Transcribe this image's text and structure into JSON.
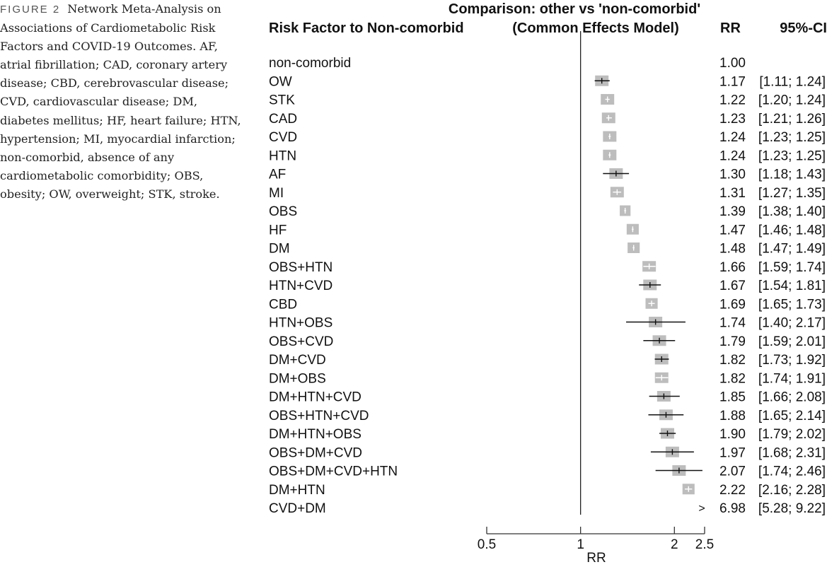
{
  "caption": {
    "label": "FIGURE 2",
    "text": "Network Meta-Analysis on Associations of Cardiometabolic Risk Factors and COVID-19 Outcomes. AF, atrial fibrillation; CAD, coronary artery disease; CBD, cerebrovascular disease; CVD, cardiovascular disease; DM, diabetes mellitus; HF, heart failure; HTN, hypertension; MI, myocardial infarction; non-comorbid, absence of any cardiometabolic comorbidity; OBS, obesity; OW, overweight; STK, stroke."
  },
  "chart_data": {
    "type": "forest",
    "title": "Comparison: other vs 'non-comorbid'",
    "subtitle": "(Common Effects Model)",
    "headers": {
      "label_col": "Risk Factor to Non-comorbid",
      "rr_col": "RR",
      "ci_col": "95%-CI"
    },
    "xlabel": "RR",
    "x_scale": "log",
    "xlim": [
      0.5,
      2.5
    ],
    "x_ticks": [
      0.5,
      1,
      2,
      2.5
    ],
    "x_tick_labels": [
      "0.5",
      "1",
      "2",
      "2.5"
    ],
    "reference_line": 1,
    "out_of_range_marker": ">",
    "rows": [
      {
        "label": "non-comorbid",
        "rr": 1.0,
        "lo": null,
        "hi": null,
        "rr_text": "1.00",
        "ci_text": "",
        "weight": 0
      },
      {
        "label": "OW",
        "rr": 1.17,
        "lo": 1.11,
        "hi": 1.24,
        "rr_text": "1.17",
        "ci_text": "[1.11; 1.24]",
        "weight": 1
      },
      {
        "label": "STK",
        "rr": 1.22,
        "lo": 1.2,
        "hi": 1.24,
        "rr_text": "1.22",
        "ci_text": "[1.20; 1.24]",
        "weight": 1
      },
      {
        "label": "CAD",
        "rr": 1.23,
        "lo": 1.21,
        "hi": 1.26,
        "rr_text": "1.23",
        "ci_text": "[1.21; 1.26]",
        "weight": 1
      },
      {
        "label": "CVD",
        "rr": 1.24,
        "lo": 1.23,
        "hi": 1.25,
        "rr_text": "1.24",
        "ci_text": "[1.23; 1.25]",
        "weight": 1
      },
      {
        "label": "HTN",
        "rr": 1.24,
        "lo": 1.23,
        "hi": 1.25,
        "rr_text": "1.24",
        "ci_text": "[1.23; 1.25]",
        "weight": 1
      },
      {
        "label": "AF",
        "rr": 1.3,
        "lo": 1.18,
        "hi": 1.43,
        "rr_text": "1.30",
        "ci_text": "[1.18; 1.43]",
        "weight": 1
      },
      {
        "label": "MI",
        "rr": 1.31,
        "lo": 1.27,
        "hi": 1.35,
        "rr_text": "1.31",
        "ci_text": "[1.27; 1.35]",
        "weight": 1
      },
      {
        "label": "OBS",
        "rr": 1.39,
        "lo": 1.38,
        "hi": 1.4,
        "rr_text": "1.39",
        "ci_text": "[1.38; 1.40]",
        "weight": 0.8
      },
      {
        "label": "HF",
        "rr": 1.47,
        "lo": 1.46,
        "hi": 1.48,
        "rr_text": "1.47",
        "ci_text": "[1.46; 1.48]",
        "weight": 0.9
      },
      {
        "label": "DM",
        "rr": 1.48,
        "lo": 1.47,
        "hi": 1.49,
        "rr_text": "1.48",
        "ci_text": "[1.47; 1.49]",
        "weight": 0.9
      },
      {
        "label": "OBS+HTN",
        "rr": 1.66,
        "lo": 1.59,
        "hi": 1.74,
        "rr_text": "1.66",
        "ci_text": "[1.59; 1.74]",
        "weight": 1
      },
      {
        "label": "HTN+CVD",
        "rr": 1.67,
        "lo": 1.54,
        "hi": 1.81,
        "rr_text": "1.67",
        "ci_text": "[1.54; 1.81]",
        "weight": 1
      },
      {
        "label": "CBD",
        "rr": 1.69,
        "lo": 1.65,
        "hi": 1.73,
        "rr_text": "1.69",
        "ci_text": "[1.65; 1.73]",
        "weight": 0.9
      },
      {
        "label": "HTN+OBS",
        "rr": 1.74,
        "lo": 1.4,
        "hi": 2.17,
        "rr_text": "1.74",
        "ci_text": "[1.40; 2.17]",
        "weight": 1
      },
      {
        "label": "OBS+CVD",
        "rr": 1.79,
        "lo": 1.59,
        "hi": 2.01,
        "rr_text": "1.79",
        "ci_text": "[1.59; 2.01]",
        "weight": 1
      },
      {
        "label": "DM+CVD",
        "rr": 1.82,
        "lo": 1.73,
        "hi": 1.92,
        "rr_text": "1.82",
        "ci_text": "[1.73; 1.92]",
        "weight": 1
      },
      {
        "label": "DM+OBS",
        "rr": 1.82,
        "lo": 1.74,
        "hi": 1.91,
        "rr_text": "1.82",
        "ci_text": "[1.74; 1.91]",
        "weight": 1
      },
      {
        "label": "DM+HTN+CVD",
        "rr": 1.85,
        "lo": 1.66,
        "hi": 2.08,
        "rr_text": "1.85",
        "ci_text": "[1.66; 2.08]",
        "weight": 1
      },
      {
        "label": "OBS+HTN+CVD",
        "rr": 1.88,
        "lo": 1.65,
        "hi": 2.14,
        "rr_text": "1.88",
        "ci_text": "[1.65; 2.14]",
        "weight": 1
      },
      {
        "label": "DM+HTN+OBS",
        "rr": 1.9,
        "lo": 1.79,
        "hi": 2.02,
        "rr_text": "1.90",
        "ci_text": "[1.79; 2.02]",
        "weight": 1
      },
      {
        "label": "OBS+DM+CVD",
        "rr": 1.97,
        "lo": 1.68,
        "hi": 2.31,
        "rr_text": "1.97",
        "ci_text": "[1.68; 2.31]",
        "weight": 1
      },
      {
        "label": "OBS+DM+CVD+HTN",
        "rr": 2.07,
        "lo": 1.74,
        "hi": 2.46,
        "rr_text": "2.07",
        "ci_text": "[1.74; 2.46]",
        "weight": 1
      },
      {
        "label": "DM+HTN",
        "rr": 2.22,
        "lo": 2.16,
        "hi": 2.28,
        "rr_text": "2.22",
        "ci_text": "[2.16; 2.28]",
        "weight": 0.9
      },
      {
        "label": "CVD+DM",
        "rr": 6.98,
        "lo": 5.28,
        "hi": 9.22,
        "rr_text": "6.98",
        "ci_text": "[5.28; 9.22]",
        "weight": 0
      }
    ],
    "colors": {
      "box": "#bdbdbd",
      "ci_line": "#111111",
      "axis": "#333333"
    }
  }
}
